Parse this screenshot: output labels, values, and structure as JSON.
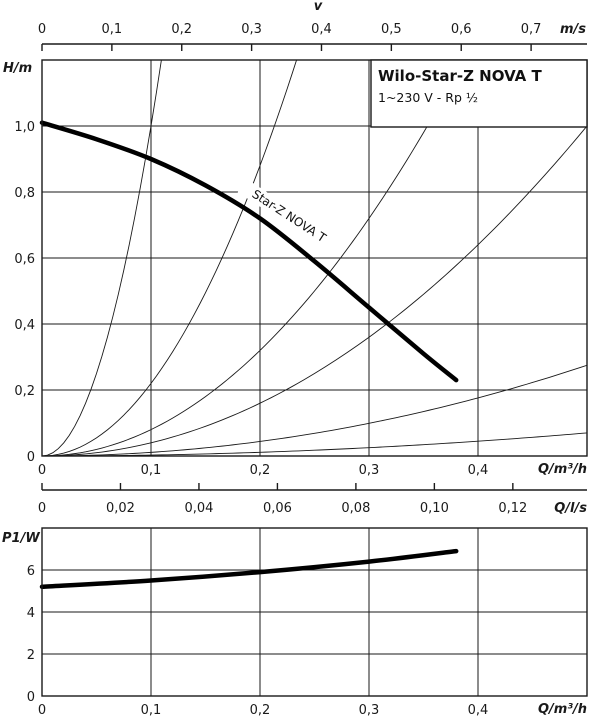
{
  "chart_data": [
    {
      "type": "line",
      "title": "Wilo-Star-Z NOVA T",
      "subtitle": "1~230 V - Rp ½",
      "ylabel": "H/m",
      "xlabel": "Q/m³/h",
      "top_axis_label": "v",
      "top_axis_unit": "m/s",
      "second_x_unit": "Q/l/s",
      "xlim": [
        0,
        0.5
      ],
      "ylim": [
        0,
        1.2
      ],
      "x_ticks": [
        "0",
        "0,1",
        "0,2",
        "0,3",
        "0,4"
      ],
      "y_ticks": [
        "0",
        "0,2",
        "0,4",
        "0,6",
        "0,8",
        "1,0"
      ],
      "top_ticks": [
        "0",
        "0,1",
        "0,2",
        "0,3",
        "0,4",
        "0,5",
        "0,6",
        "0,7"
      ],
      "top_tick_values": [
        0,
        0.1,
        0.2,
        0.3,
        0.4,
        0.5,
        0.6,
        0.7
      ],
      "top_scale_max": 0.78,
      "second_ticks": [
        "0",
        "0,02",
        "0,04",
        "0,06",
        "0,08",
        "0,10",
        "0,12"
      ],
      "second_tick_values": [
        0,
        0.02,
        0.04,
        0.06,
        0.08,
        0.1,
        0.12
      ],
      "second_scale_max": 0.1389,
      "series": [
        {
          "name": "Star-Z NOVA T",
          "x": [
            0,
            0.05,
            0.1,
            0.15,
            0.2,
            0.25,
            0.3,
            0.35,
            0.38
          ],
          "y": [
            1.01,
            0.96,
            0.9,
            0.82,
            0.72,
            0.59,
            0.45,
            0.31,
            0.23
          ]
        }
      ],
      "system_curve_coefficients": [
        100,
        22,
        8,
        4,
        1.1,
        0.28
      ]
    },
    {
      "type": "line",
      "ylabel": "P1/W",
      "xlabel": "Q/m³/h",
      "xlim": [
        0,
        0.5
      ],
      "ylim": [
        0,
        8
      ],
      "x_ticks": [
        "0",
        "0,1",
        "0,2",
        "0,3",
        "0,4"
      ],
      "y_ticks": [
        "0",
        "2",
        "4",
        "6"
      ],
      "series": [
        {
          "x": [
            0,
            0.1,
            0.2,
            0.3,
            0.38
          ],
          "y": [
            5.2,
            5.5,
            5.9,
            6.4,
            6.9
          ]
        }
      ]
    }
  ]
}
